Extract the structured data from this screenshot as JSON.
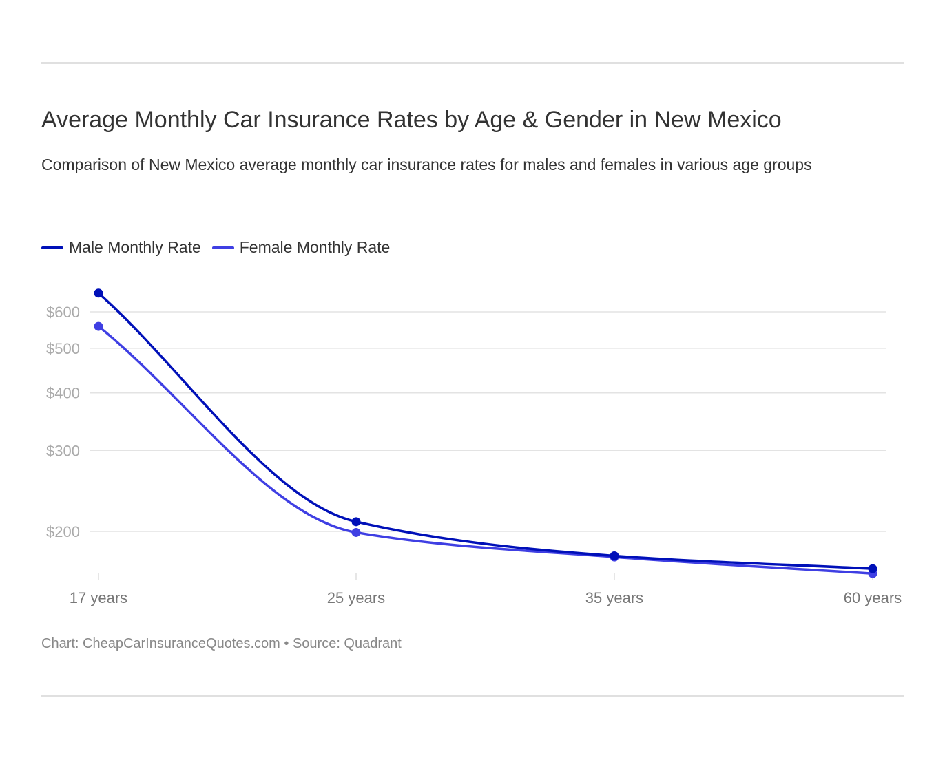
{
  "chart_data": {
    "type": "line",
    "title": "Average Monthly Car Insurance Rates by Age & Gender in New Mexico",
    "subtitle": "Comparison of New Mexico average monthly car insurance rates for males and females in various age groups",
    "categories": [
      "17 years",
      "25 years",
      "35 years",
      "60 years"
    ],
    "series": [
      {
        "name": "Male Monthly Rate",
        "color": "#0010b8",
        "values": [
          659,
          210,
          177,
          166
        ]
      },
      {
        "name": "Female Monthly Rate",
        "color": "#3f3fe3",
        "values": [
          558,
          199,
          176,
          162
        ]
      }
    ],
    "y_scale": "log",
    "y_ticks": [
      200,
      300,
      400,
      500,
      600
    ],
    "y_tick_labels": [
      "$200",
      "$300",
      "$400",
      "$500",
      "$600"
    ],
    "grid": true,
    "legend": "top-left",
    "xlabel": "",
    "ylabel": ""
  },
  "footer": "Chart: CheapCarInsuranceQuotes.com • Source: Quadrant"
}
